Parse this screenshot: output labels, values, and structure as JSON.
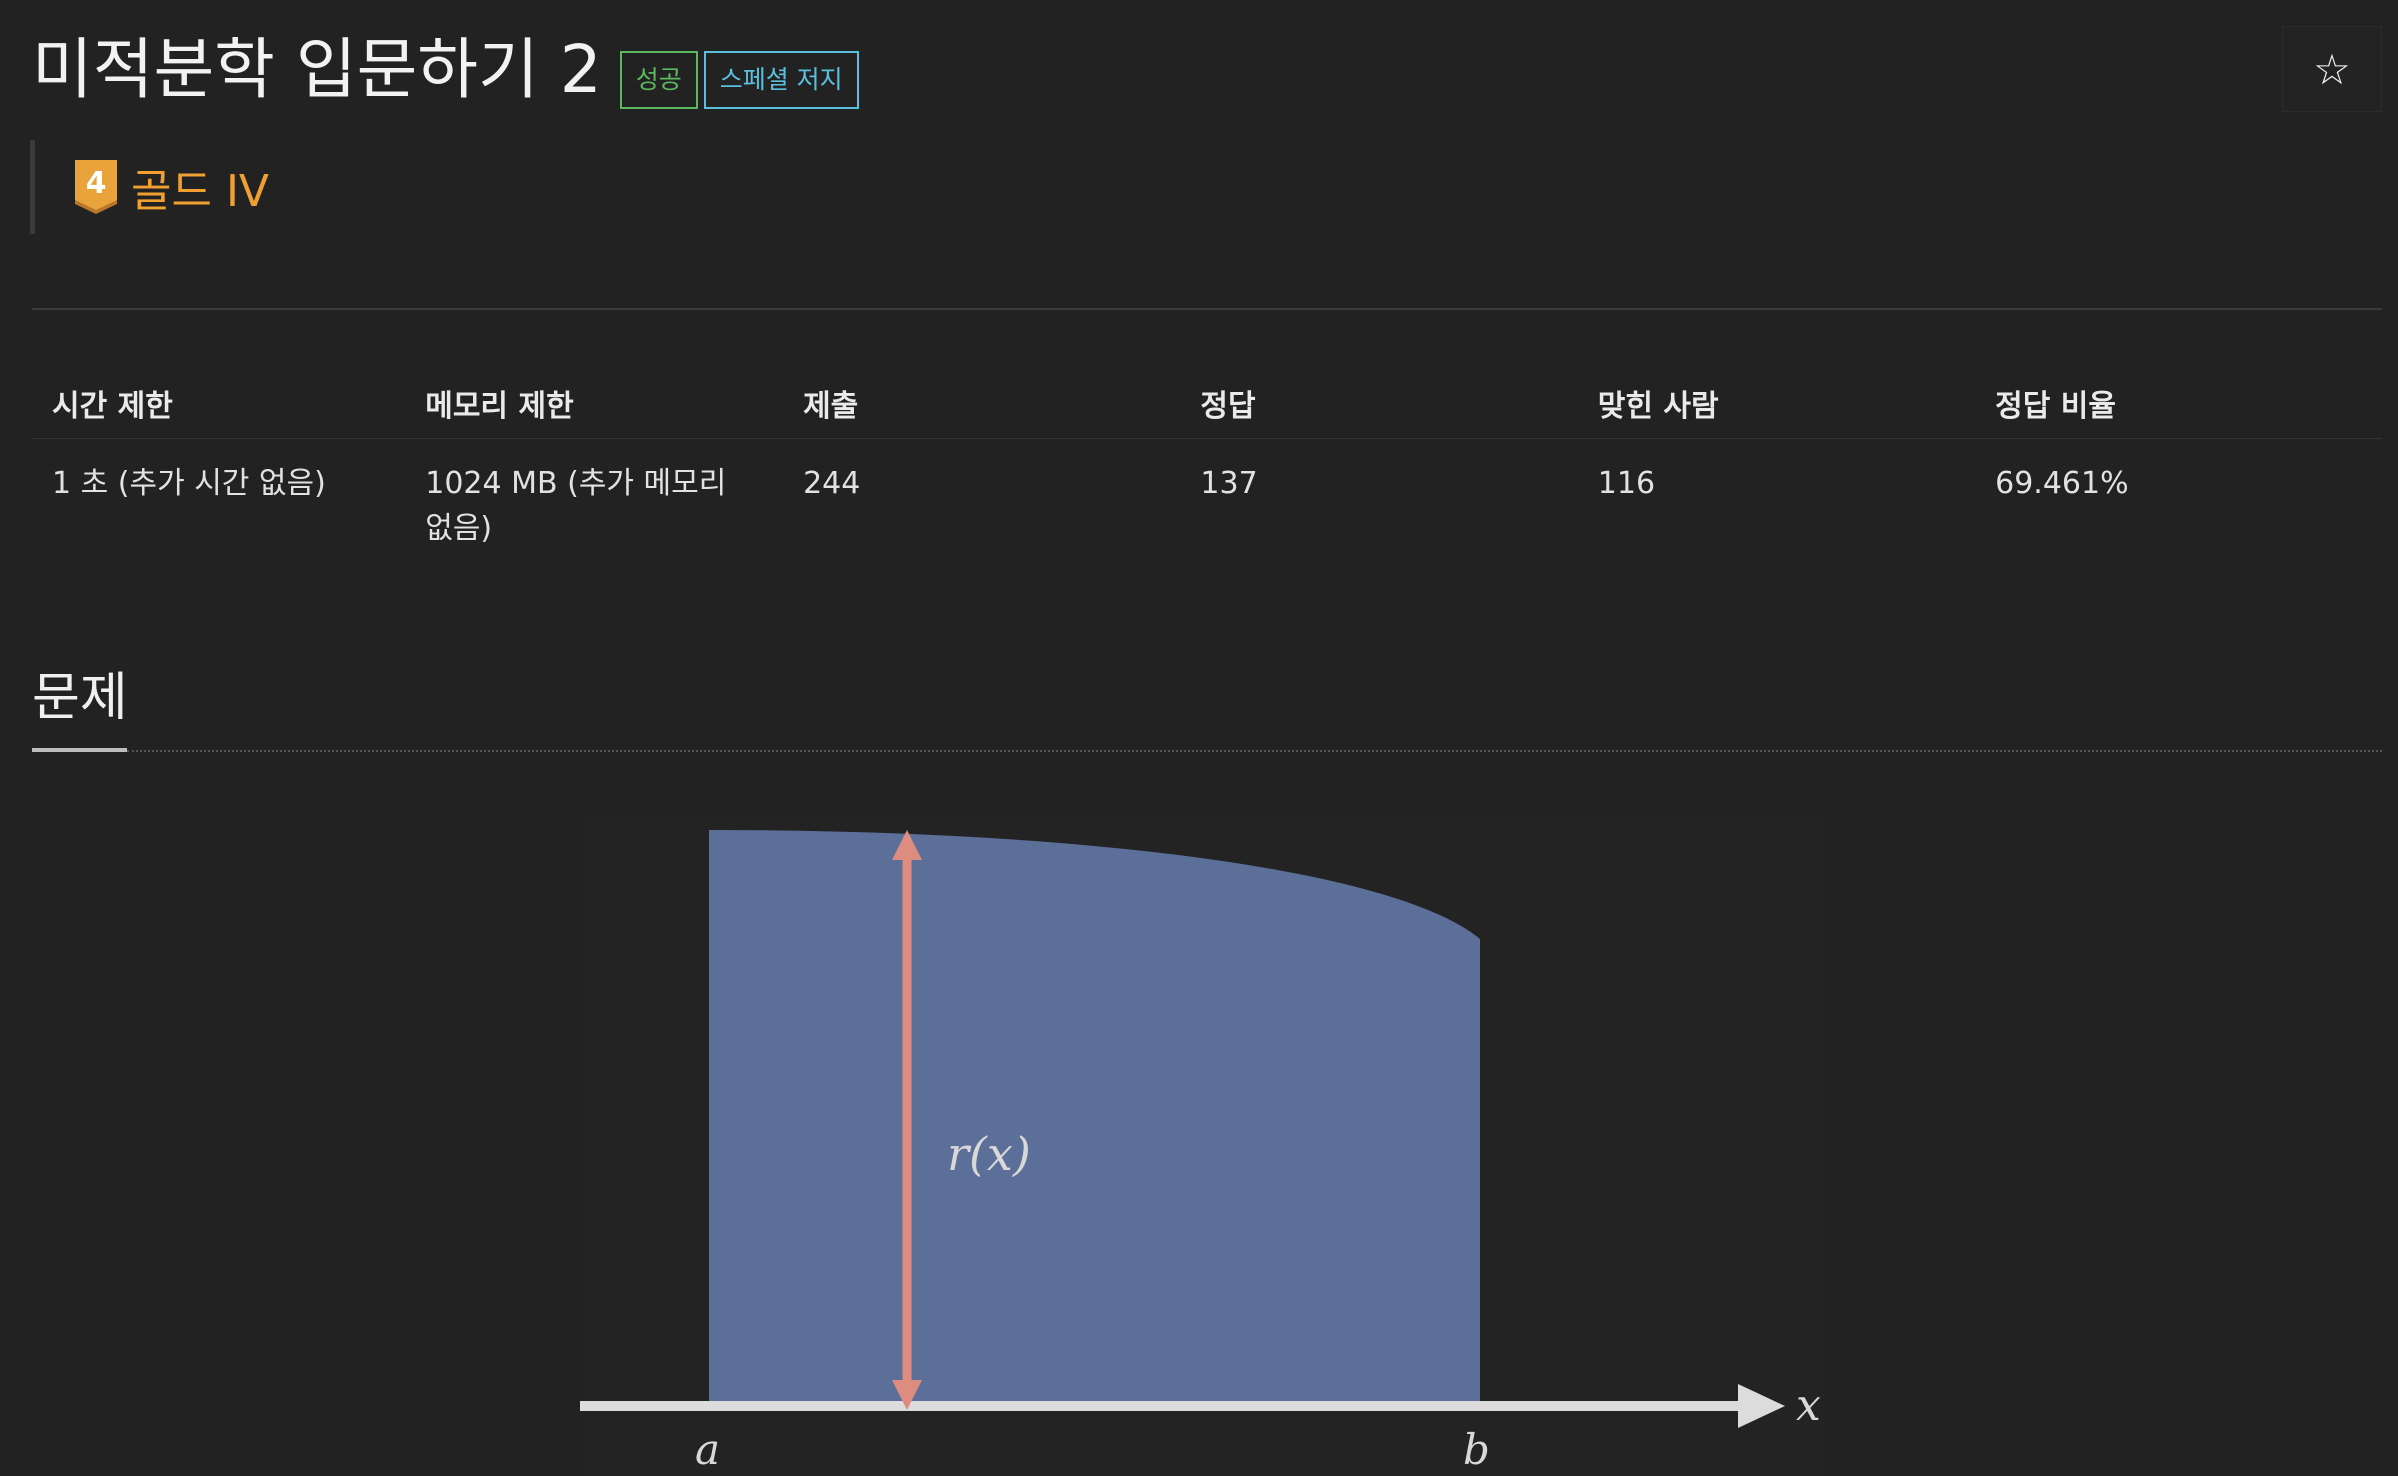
{
  "problem": {
    "title": "미적분학 입문하기 2",
    "labels": {
      "success": "성공",
      "special_judge": "스페셜 저지"
    },
    "star_icon": "☆",
    "tier": {
      "badge_number": "4",
      "name": "골드 IV",
      "color": "#f0a030"
    }
  },
  "info_table": {
    "headers": [
      "시간 제한",
      "메모리 제한",
      "제출",
      "정답",
      "맞힌 사람",
      "정답 비율"
    ],
    "row": {
      "time_limit": "1 초 (추가 시간 없음)",
      "memory_limit": "1024 MB (추가 메모리 없음)",
      "submissions": "244",
      "accepted": "137",
      "solvers": "116",
      "ratio": "69.461%"
    }
  },
  "section": {
    "title": "문제"
  },
  "figure": {
    "function_label": "r(x)",
    "x_axis_label": "x",
    "left_bound": "a",
    "right_bound": "b",
    "colors": {
      "area": "#5c6f99",
      "arrow": "#df8c80",
      "axis": "#dcdcdc"
    }
  }
}
